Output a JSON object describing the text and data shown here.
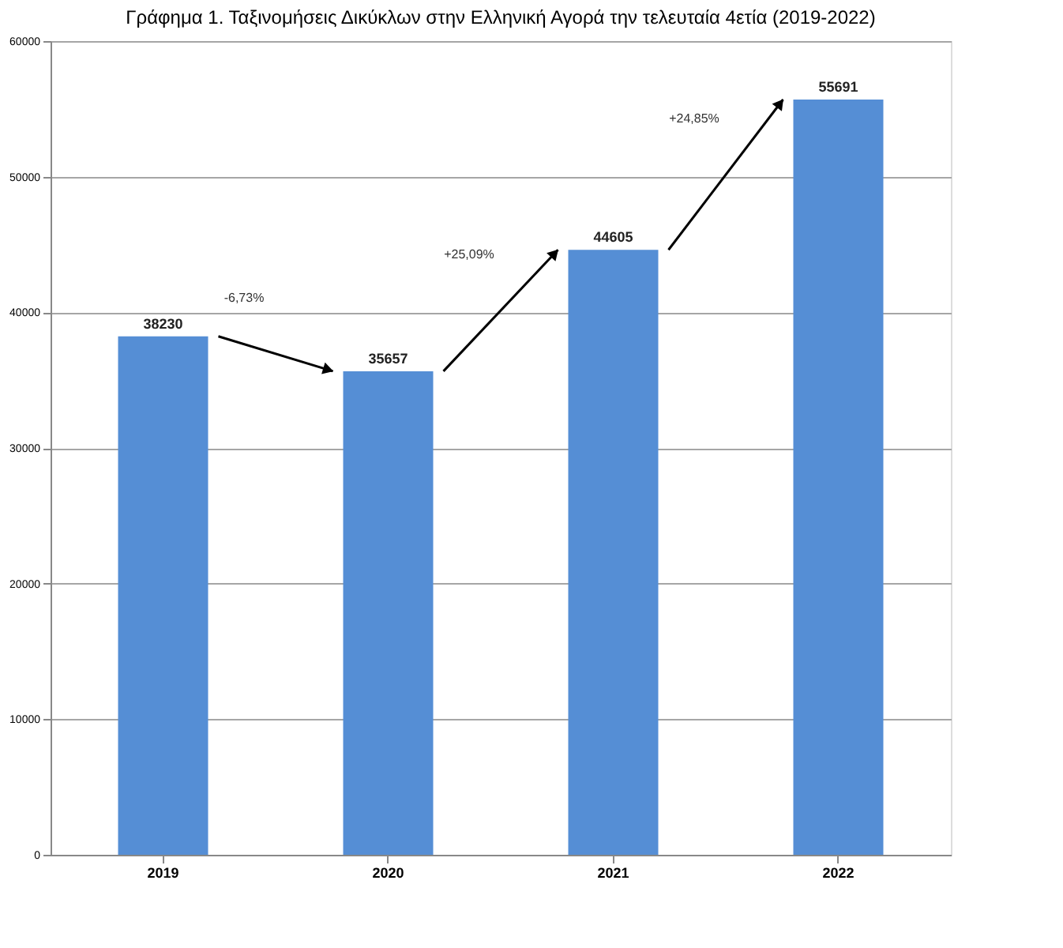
{
  "chart_data": {
    "type": "bar",
    "title": "Γράφημα 1. Ταξινομήσεις Δικύκλων στην Ελληνική Αγορά την τελευταία 4ετία (2019-2022)",
    "categories": [
      "2019",
      "2020",
      "2021",
      "2022"
    ],
    "values": [
      38230,
      35657,
      44605,
      55691
    ],
    "color": "#558ed5",
    "ylim": [
      0,
      60000
    ],
    "yticks": [
      0,
      10000,
      20000,
      30000,
      40000,
      50000,
      60000
    ],
    "grid": "y",
    "data_labels": true,
    "annotations": [
      "-6,73%",
      "+25,09%",
      "+24,85%"
    ]
  }
}
